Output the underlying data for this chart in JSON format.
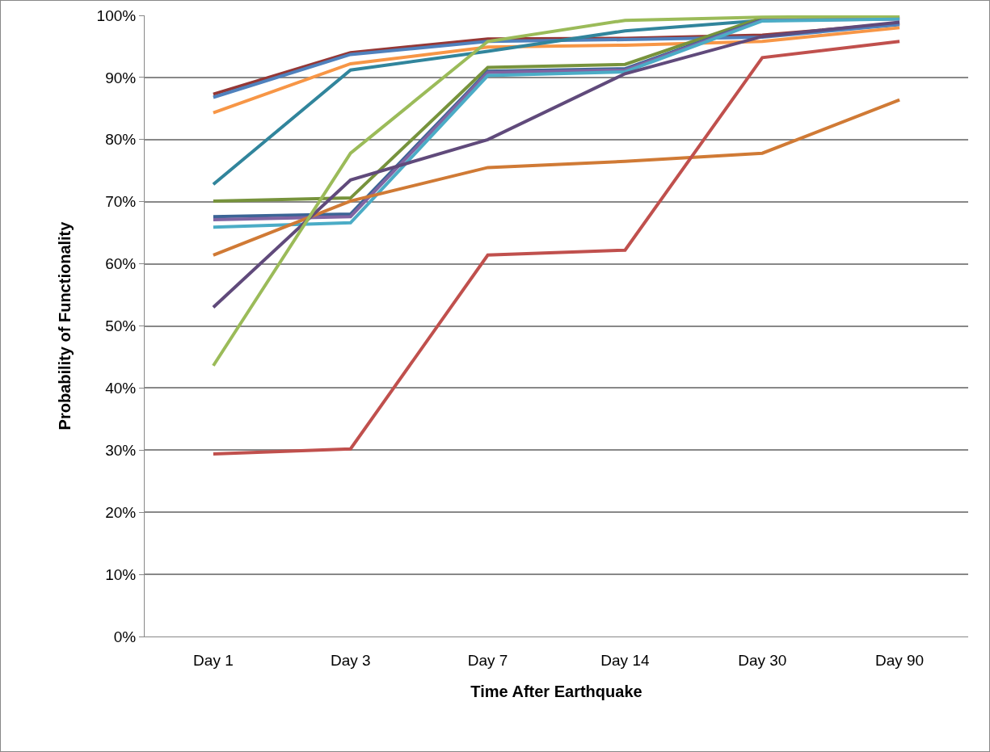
{
  "chart_data": {
    "type": "line",
    "xlabel": "Time After Earthquake",
    "ylabel": "Probability of Functionality",
    "categories": [
      "Day 1",
      "Day 3",
      "Day 7",
      "Day 14",
      "Day 30",
      "Day 90"
    ],
    "series": [
      {
        "color": "#953735",
        "values": [
          87.3,
          94.0,
          96.2,
          96.3,
          96.8,
          98.7
        ]
      },
      {
        "color": "#4f81bd",
        "values": [
          86.8,
          93.7,
          95.8,
          96.1,
          96.5,
          98.5
        ]
      },
      {
        "color": "#f79646",
        "values": [
          84.3,
          92.2,
          94.9,
          95.2,
          95.8,
          98.0
        ]
      },
      {
        "color": "#31859c",
        "values": [
          72.8,
          91.2,
          94.2,
          97.5,
          99.2,
          99.5
        ]
      },
      {
        "color": "#77933c",
        "values": [
          70.1,
          70.6,
          91.6,
          92.1,
          99.6,
          99.7
        ]
      },
      {
        "color": "#3b6496",
        "values": [
          67.6,
          68.0,
          91.0,
          91.4,
          99.3,
          99.5
        ]
      },
      {
        "color": "#8064a2",
        "values": [
          67.1,
          67.6,
          90.8,
          91.2,
          99.2,
          99.4
        ]
      },
      {
        "color": "#4bacc6",
        "values": [
          65.9,
          66.6,
          90.3,
          90.9,
          99.1,
          99.4
        ]
      },
      {
        "color": "#d07a35",
        "values": [
          61.4,
          70.1,
          75.5,
          76.5,
          77.8,
          86.4
        ]
      },
      {
        "color": "#604a7b",
        "values": [
          53.0,
          73.5,
          80.0,
          90.6,
          96.6,
          98.9
        ]
      },
      {
        "color": "#9bbb59",
        "values": [
          43.6,
          77.8,
          95.8,
          99.2,
          99.7,
          99.9
        ]
      },
      {
        "color": "#c0504d",
        "values": [
          29.4,
          30.2,
          61.4,
          62.2,
          93.2,
          95.8
        ]
      }
    ],
    "ylim": [
      0,
      100
    ],
    "yticks": [
      {
        "value": 0,
        "label": "0%"
      },
      {
        "value": 10,
        "label": "10%"
      },
      {
        "value": 20,
        "label": "20%"
      },
      {
        "value": 30,
        "label": "30%"
      },
      {
        "value": 40,
        "label": "40%"
      },
      {
        "value": 50,
        "label": "50%"
      },
      {
        "value": 60,
        "label": "60%"
      },
      {
        "value": 70,
        "label": "70%"
      },
      {
        "value": 80,
        "label": "80%"
      },
      {
        "value": 90,
        "label": "90%"
      },
      {
        "value": 100,
        "label": "100%"
      }
    ],
    "grid": "y",
    "marker": "none",
    "line_style": "solid"
  }
}
